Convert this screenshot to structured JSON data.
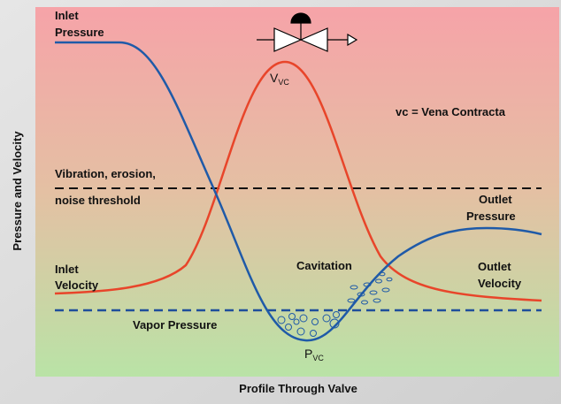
{
  "axes": {
    "y_label": "Pressure and Velocity",
    "x_label": "Profile Through Valve"
  },
  "labels": {
    "inlet_pressure": [
      "Inlet",
      "Pressure"
    ],
    "v_vc": {
      "main": "V",
      "sub": "VC"
    },
    "legend_note": "vc = Vena Contracta",
    "threshold": [
      "Vibration, erosion,",
      "noise threshold"
    ],
    "outlet_pressure": [
      "Outlet",
      "Pressure"
    ],
    "inlet_velocity": [
      "Inlet",
      "Velocity"
    ],
    "cavitation": "Cavitation",
    "outlet_velocity": [
      "Outlet",
      "Velocity"
    ],
    "vapor_pressure": "Vapor Pressure",
    "p_vc": {
      "main": "P",
      "sub": "VC"
    }
  }
}
